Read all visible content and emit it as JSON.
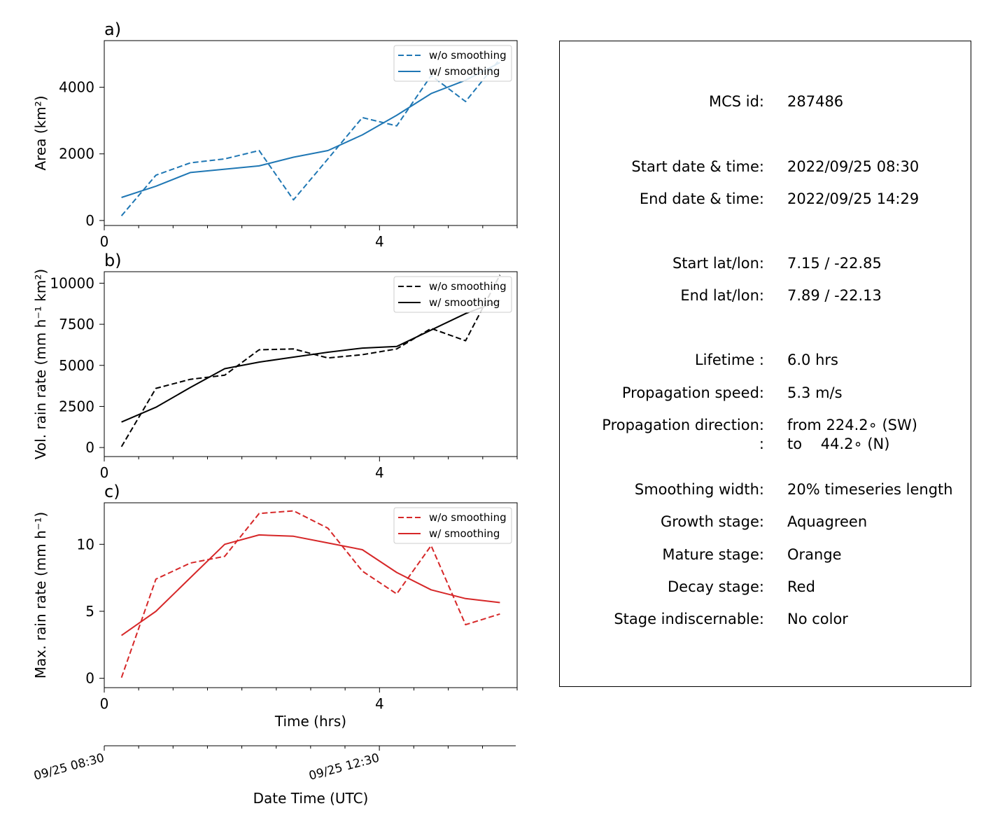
{
  "x_axis_label": "Time (hrs)",
  "datetime_axis": {
    "label": "Date Time (UTC)",
    "tick_labels": [
      "09/25 08:30",
      "09/25 12:30"
    ]
  },
  "legend": {
    "dashed": "w/o smoothing",
    "solid": "w/ smoothing"
  },
  "chart_data": [
    {
      "type": "line",
      "panel_label": "a)",
      "ylabel": "Area  (km²)",
      "color": "#1f77b4",
      "xlim": [
        0,
        6
      ],
      "ylim": [
        -150,
        5400
      ],
      "x_ticks": [
        0,
        4
      ],
      "y_ticks": [
        0,
        2000,
        4000
      ],
      "x": [
        0.25,
        0.75,
        1.25,
        1.75,
        2.25,
        2.75,
        3.25,
        3.75,
        4.25,
        4.75,
        5.25,
        5.75
      ],
      "series": [
        {
          "name": "w/o smoothing",
          "style": "dashed",
          "values": [
            140,
            1360,
            1730,
            1850,
            2100,
            620,
            1850,
            3090,
            2840,
            4350,
            3570,
            4850
          ]
        },
        {
          "name": "w/ smoothing",
          "style": "solid",
          "values": [
            690,
            1030,
            1440,
            1540,
            1640,
            1900,
            2100,
            2570,
            3160,
            3810,
            4210,
            4740
          ]
        }
      ],
      "legend_position": "top-right"
    },
    {
      "type": "line",
      "panel_label": "b)",
      "ylabel": "Vol. rain rate (mm h⁻¹ km²)",
      "color": "#000000",
      "xlim": [
        0,
        6
      ],
      "ylim": [
        -550,
        10700
      ],
      "x_ticks": [
        0,
        4
      ],
      "y_ticks": [
        0,
        2500,
        5000,
        7500,
        10000
      ],
      "x": [
        0.25,
        0.75,
        1.25,
        1.75,
        2.25,
        2.75,
        3.25,
        3.75,
        4.25,
        4.75,
        5.25,
        5.75
      ],
      "series": [
        {
          "name": "w/o smoothing",
          "style": "dashed",
          "values": [
            50,
            3600,
            4150,
            4400,
            5950,
            6000,
            5450,
            5650,
            6000,
            7250,
            6500,
            10500
          ]
        },
        {
          "name": "w/ smoothing",
          "style": "solid",
          "values": [
            1550,
            2450,
            3650,
            4800,
            5200,
            5500,
            5800,
            6050,
            6150,
            7150,
            8150,
            8950
          ]
        }
      ],
      "legend_position": "top-right"
    },
    {
      "type": "line",
      "panel_label": "c)",
      "ylabel": "Max. rain rate  (mm h⁻¹)",
      "color": "#d62728",
      "xlim": [
        0,
        6
      ],
      "ylim": [
        -0.7,
        13.1
      ],
      "x_ticks": [
        0,
        4
      ],
      "y_ticks": [
        0,
        5,
        10
      ],
      "x": [
        0.25,
        0.75,
        1.25,
        1.75,
        2.25,
        2.75,
        3.25,
        3.75,
        4.25,
        4.75,
        5.25,
        5.75
      ],
      "series": [
        {
          "name": "w/o smoothing",
          "style": "dashed",
          "values": [
            0.05,
            7.4,
            8.6,
            9.1,
            12.3,
            12.5,
            11.2,
            8.0,
            6.3,
            9.9,
            4.0,
            4.8
          ]
        },
        {
          "name": "w/ smoothing",
          "style": "solid",
          "values": [
            3.2,
            5.0,
            7.5,
            10.0,
            10.7,
            10.6,
            10.1,
            9.6,
            7.9,
            6.6,
            5.95,
            5.65
          ]
        }
      ],
      "legend_position": "top-right"
    }
  ],
  "info": {
    "rows": [
      {
        "label": "MCS id:",
        "value": "287486"
      },
      {
        "label": "Start date & time:",
        "value": "2022/09/25 08:30"
      },
      {
        "label": "End date & time:",
        "value": "2022/09/25 14:29"
      },
      {
        "label": "Start lat/lon:",
        "value": "7.15 / -22.85"
      },
      {
        "label": "End lat/lon:",
        "value": "7.89 / -22.13"
      },
      {
        "label": "Lifetime :",
        "value": "6.0 hrs"
      },
      {
        "label": "Propagation speed:",
        "value": "5.3 m/s"
      },
      {
        "label": "Propagation direction:",
        "value": "from 224.2∘ (SW)"
      },
      {
        "label": ":",
        "value": "to    44.2∘ (N)"
      },
      {
        "label": "Smoothing width:",
        "value": "20% timeseries length"
      },
      {
        "label": "Growth stage:",
        "value": "Aquagreen"
      },
      {
        "label": "Mature stage:",
        "value": "Orange"
      },
      {
        "label": "Decay stage:",
        "value": "Red"
      },
      {
        "label": "Stage indiscernable:",
        "value": "No color"
      }
    ]
  }
}
